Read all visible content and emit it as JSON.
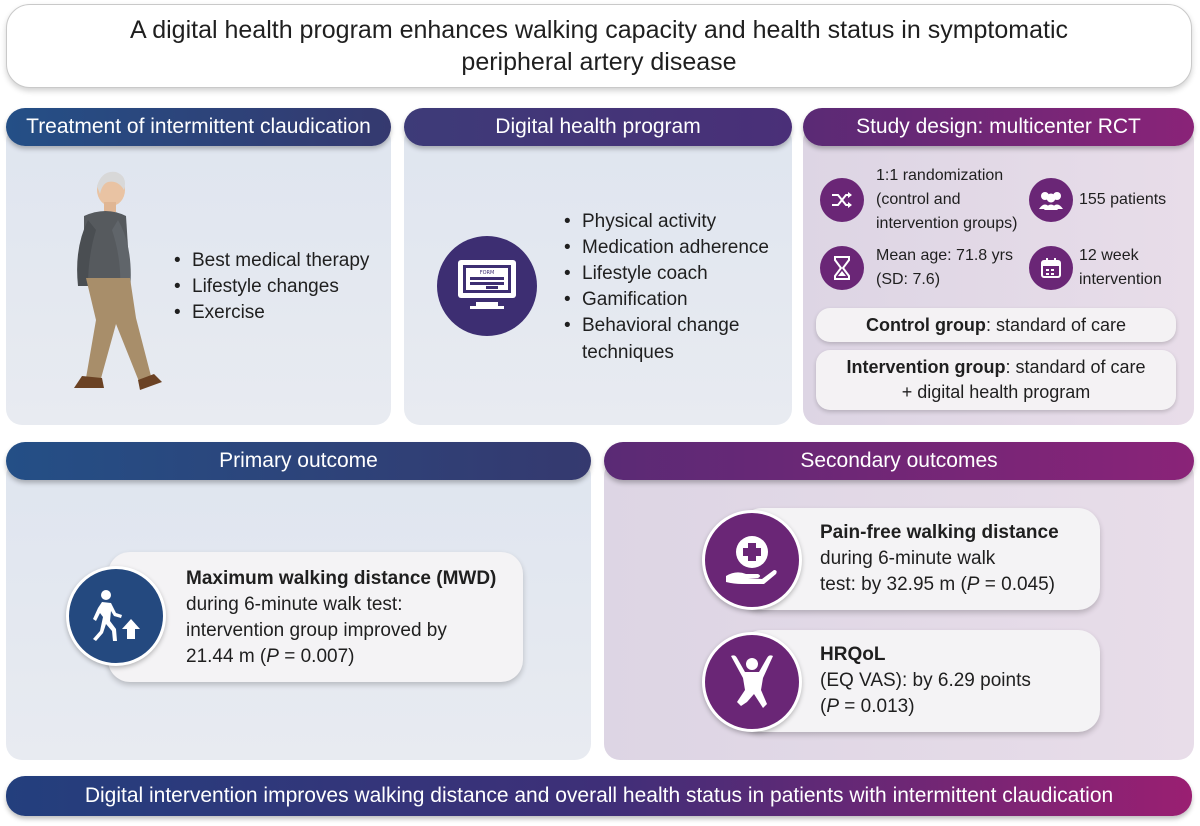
{
  "title": {
    "line1": "A digital health program enhances walking capacity and health status in symptomatic",
    "line2": "peripheral artery disease"
  },
  "treatment": {
    "header": "Treatment of intermittent claudication",
    "items": [
      "Best medical therapy",
      "Lifestyle changes",
      "Exercise"
    ]
  },
  "program": {
    "header": "Digital health program",
    "form_label": "FORM",
    "items": [
      "Physical activity",
      "Medication adherence",
      "Lifestyle coach",
      "Gamification",
      "Behavioral change",
      "techniques"
    ]
  },
  "study": {
    "header": "Study design: multicenter RCT",
    "randomization": [
      "1:1 randomization",
      "(control and",
      "intervention groups)"
    ],
    "patients": "155 patients",
    "age": [
      "Mean age: 71.8 yrs",
      "(SD: 7.6)"
    ],
    "duration": [
      "12 week",
      "intervention"
    ],
    "control_label": "Control group",
    "control_text": ": standard of care",
    "intervention_label": "Intervention group",
    "intervention_text": ": standard of care",
    "intervention_text2": "+ digital health program"
  },
  "primary": {
    "header": "Primary outcome",
    "title": "Maximum walking distance (MWD)",
    "lines": [
      "during 6-minute walk test:",
      "intervention group improved by",
      "21.44 m ("
    ],
    "p_symbol": "P",
    "p_value": " = 0.007)"
  },
  "secondary": {
    "header": "Secondary outcomes",
    "pfwd_title": "Pain-free walking distance",
    "pfwd_lines": [
      "during 6-minute walk",
      "test: by 32.95 m ("
    ],
    "pfwd_p_symbol": "P",
    "pfwd_p_value": " = 0.045)",
    "hrqol_title": "HRQoL",
    "hrqol_lines": [
      "(EQ VAS): by 6.29 points",
      "("
    ],
    "hrqol_p_symbol": "P",
    "hrqol_p_value": " = 0.013)"
  },
  "conclusion": "Digital intervention improves walking distance and overall health status in patients with intermittent claudication",
  "colors": {
    "blue": "#244f86",
    "purple": "#8a2378",
    "indigo": "#3d2e72"
  }
}
